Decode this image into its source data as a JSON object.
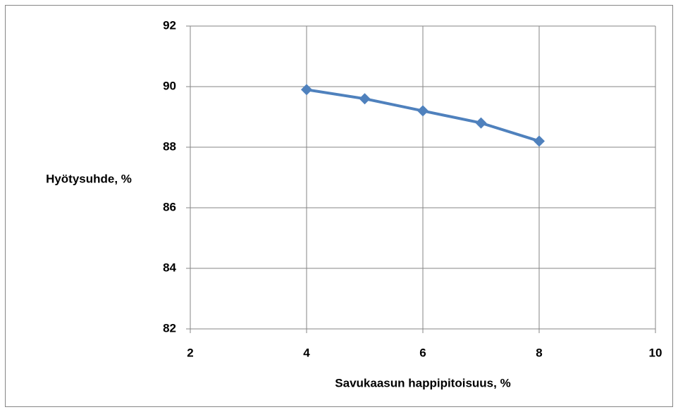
{
  "chart_data": {
    "type": "line",
    "x": [
      4,
      5,
      6,
      7,
      8
    ],
    "values": [
      89.9,
      89.6,
      89.2,
      88.8,
      88.2
    ],
    "color": "#4f81bd",
    "xlabel": "Savukaasun happipitoisuus, %",
    "ylabel": "Hyötysuhde, %",
    "xlim": [
      2,
      10
    ],
    "xticks": [
      2,
      4,
      6,
      8,
      10
    ],
    "ylim": [
      82,
      92
    ],
    "yticks": [
      82,
      84,
      86,
      88,
      90,
      92
    ],
    "grid": true
  }
}
